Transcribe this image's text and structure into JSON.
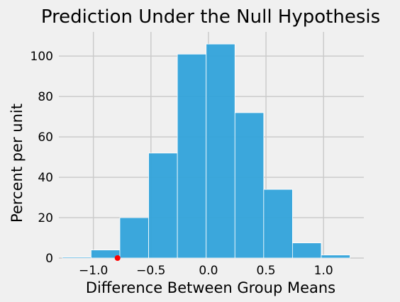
{
  "chart_data": {
    "type": "bar",
    "title": "Prediction Under the Null Hypothesis",
    "xlabel": "Difference Between Group Means",
    "ylabel": "Percent per unit",
    "xlim": [
      -1.3,
      1.35
    ],
    "ylim": [
      0,
      112
    ],
    "grid": true,
    "x_ticks": [
      {
        "value": -1.0,
        "label": "−1.0"
      },
      {
        "value": -0.5,
        "label": "−0.5"
      },
      {
        "value": 0.0,
        "label": "0.0"
      },
      {
        "value": 0.5,
        "label": "0.5"
      },
      {
        "value": 1.0,
        "label": "1.0"
      }
    ],
    "y_ticks": [
      {
        "value": 0,
        "label": "0"
      },
      {
        "value": 20,
        "label": "20"
      },
      {
        "value": 40,
        "label": "40"
      },
      {
        "value": 60,
        "label": "60"
      },
      {
        "value": 80,
        "label": "80"
      },
      {
        "value": 100,
        "label": "100"
      }
    ],
    "bin_edges": [
      -1.27,
      -1.02,
      -0.77,
      -0.52,
      -0.27,
      -0.02,
      0.23,
      0.48,
      0.73,
      0.98,
      1.23
    ],
    "values": [
      0.5,
      4,
      20,
      52,
      101,
      106,
      72,
      34,
      7.5,
      1.5
    ],
    "bar_color": "#30a2da",
    "observed_point": {
      "x": -0.79,
      "y": 0,
      "color": "#ff0000"
    }
  }
}
